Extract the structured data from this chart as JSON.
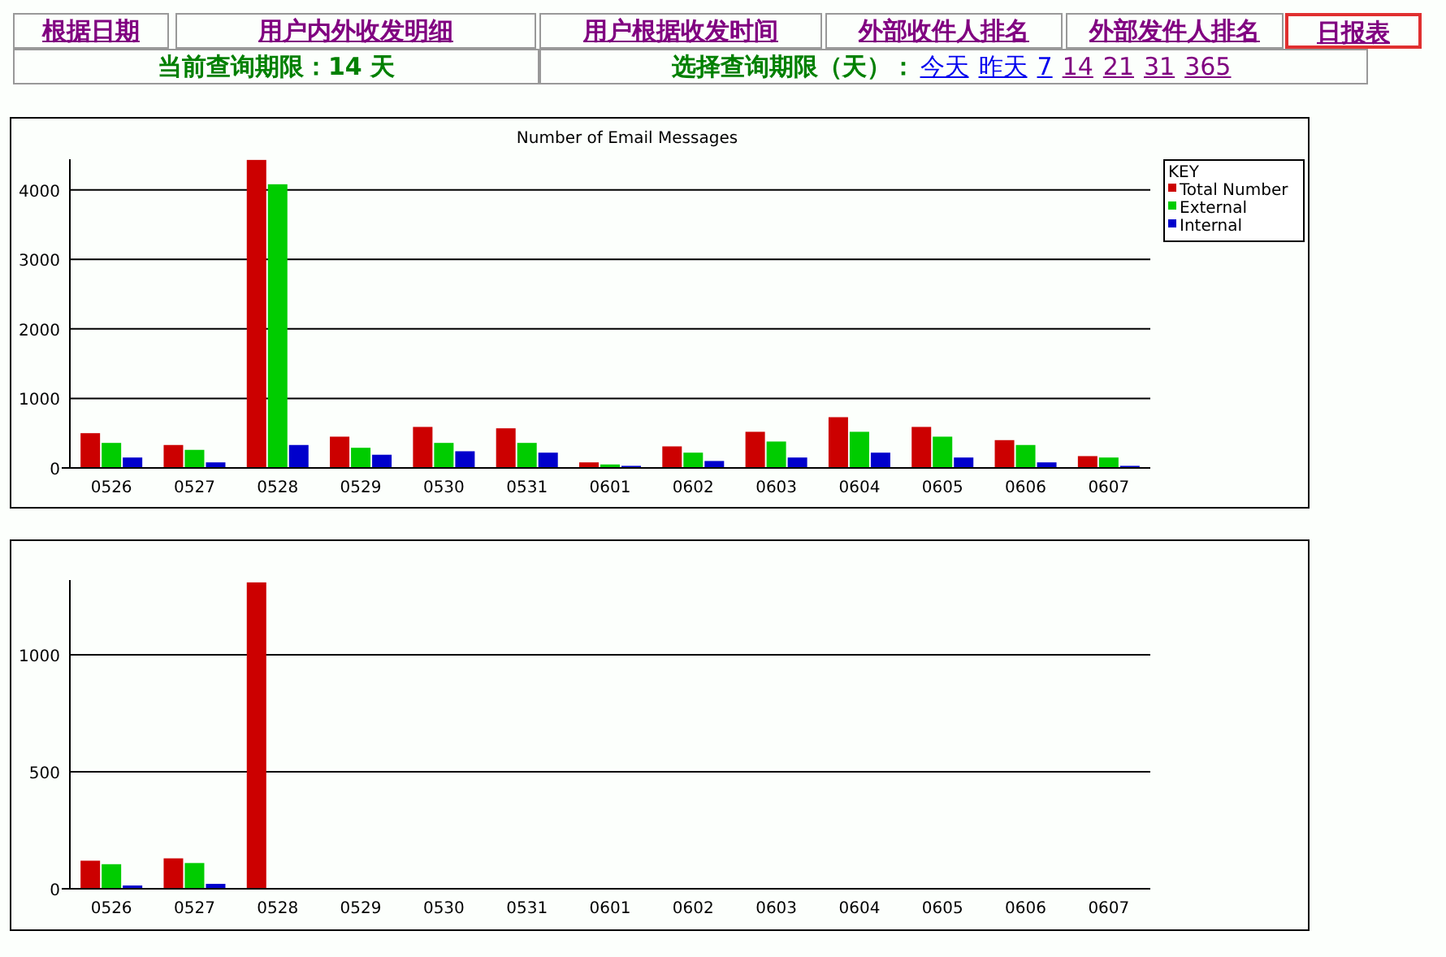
{
  "chart_data": [
    {
      "type": "bar",
      "title": "Number of Email Messages",
      "legend_title": "KEY",
      "legend": "top right",
      "grid": "y",
      "categories": [
        "0526",
        "0527",
        "0528",
        "0529",
        "0530",
        "0531",
        "0601",
        "0602",
        "0603",
        "0604",
        "0605",
        "0606",
        "0607"
      ],
      "series": [
        {
          "name": "Total Number",
          "color": "#cc0000",
          "values": [
            500,
            330,
            4430,
            450,
            590,
            570,
            80,
            310,
            520,
            730,
            590,
            400,
            170
          ]
        },
        {
          "name": "External",
          "color": "#00cc00",
          "values": [
            360,
            260,
            4080,
            290,
            360,
            360,
            50,
            220,
            380,
            520,
            450,
            330,
            150
          ]
        },
        {
          "name": "Internal",
          "color": "#0000cc",
          "values": [
            150,
            80,
            330,
            190,
            240,
            220,
            30,
            100,
            150,
            220,
            150,
            80,
            30
          ]
        }
      ],
      "ylim": [
        0,
        4440
      ],
      "yticks": [
        0,
        1000,
        2000,
        3000,
        4000
      ],
      "annotations": [
        "根据日期",
        "用户内外收发明细",
        "用户根据收发时间",
        "外部收件人排名",
        "外部发件人排名",
        "日报表",
        "当前查询期限：14 天",
        "选择查询期限（天）：",
        "今天",
        "昨天",
        "7",
        "14",
        "21",
        "31",
        "365"
      ]
    },
    {
      "type": "bar",
      "grid": "y",
      "categories": [
        "0526",
        "0527",
        "0528",
        "0529",
        "0530",
        "0531",
        "0601",
        "0602",
        "0603",
        "0604",
        "0605",
        "0606",
        "0607"
      ],
      "series": [
        {
          "color": "#cc0000",
          "values": [
            120,
            130,
            1310,
            0,
            0,
            0,
            0,
            0,
            0,
            0,
            0,
            0,
            0
          ]
        },
        {
          "color": "#00cc00",
          "values": [
            105,
            110,
            0,
            0,
            0,
            0,
            0,
            0,
            0,
            0,
            0,
            0,
            0
          ]
        },
        {
          "color": "#0000cc",
          "values": [
            14,
            21,
            0,
            0,
            0,
            0,
            0,
            0,
            0,
            0,
            0,
            0,
            0
          ]
        }
      ],
      "ylim": [
        0,
        1320
      ],
      "yticks": [
        0,
        500,
        1000
      ]
    }
  ]
}
